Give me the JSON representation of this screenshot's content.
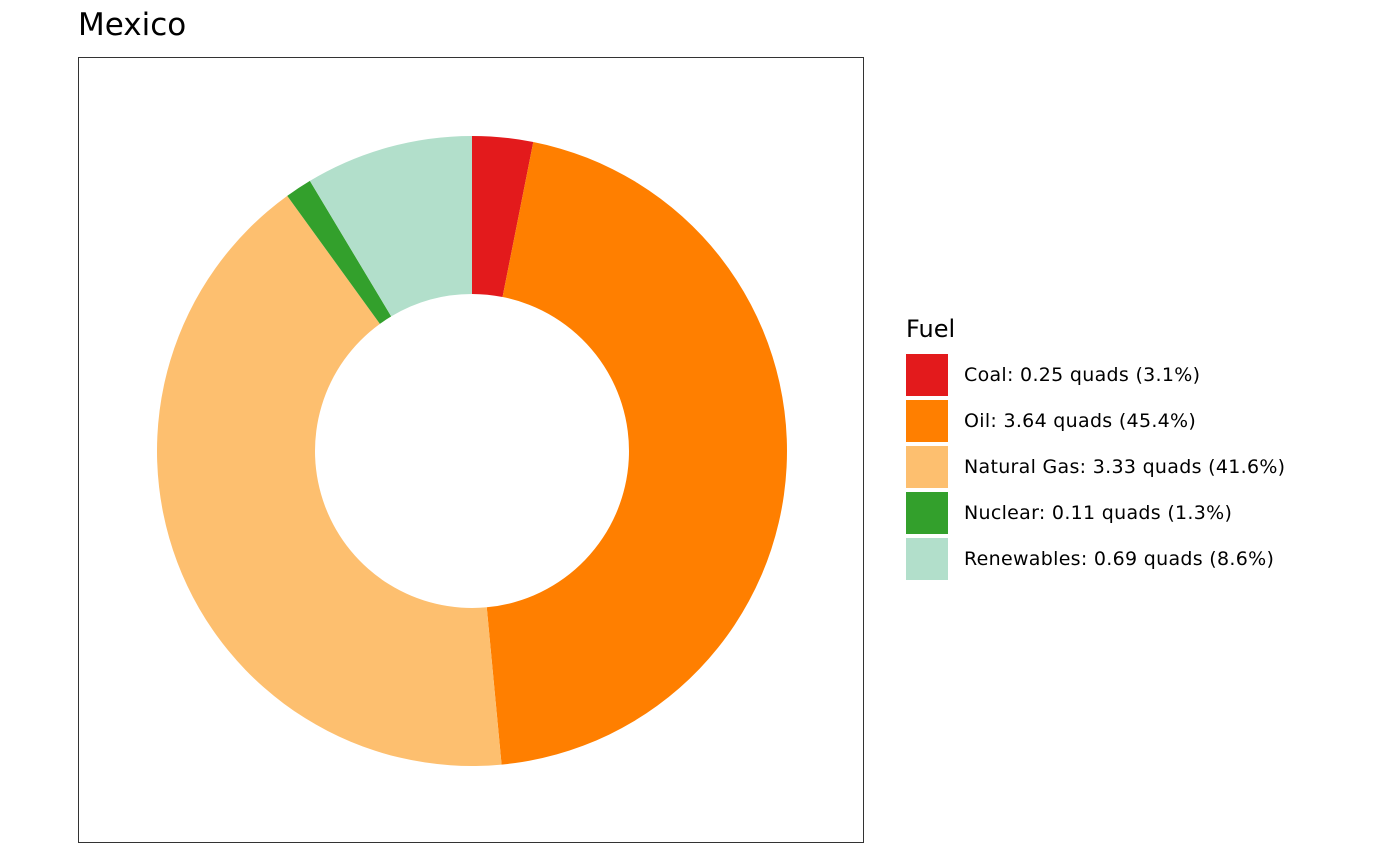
{
  "chart_data": {
    "type": "pie",
    "variant": "donut",
    "title": "Mexico",
    "legend_title": "Fuel",
    "legend_position": "right",
    "slices": [
      {
        "name": "Coal",
        "value": 0.25,
        "percent": 3.1,
        "color": "#e31a1c",
        "label": "Coal: 0.25 quads (3.1%)"
      },
      {
        "name": "Oil",
        "value": 3.64,
        "percent": 45.4,
        "color": "#ff7f00",
        "label": "Oil: 3.64 quads (45.4%)"
      },
      {
        "name": "Natural Gas",
        "value": 3.33,
        "percent": 41.6,
        "color": "#fdbf6f",
        "label": "Natural Gas: 3.33 quads (41.6%)"
      },
      {
        "name": "Nuclear",
        "value": 0.11,
        "percent": 1.3,
        "color": "#33a02c",
        "label": "Nuclear: 0.11 quads (1.3%)"
      },
      {
        "name": "Renewables",
        "value": 0.69,
        "percent": 8.6,
        "color": "#b2dfcb",
        "label": "Renewables: 0.69 quads (8.6%)"
      }
    ]
  }
}
